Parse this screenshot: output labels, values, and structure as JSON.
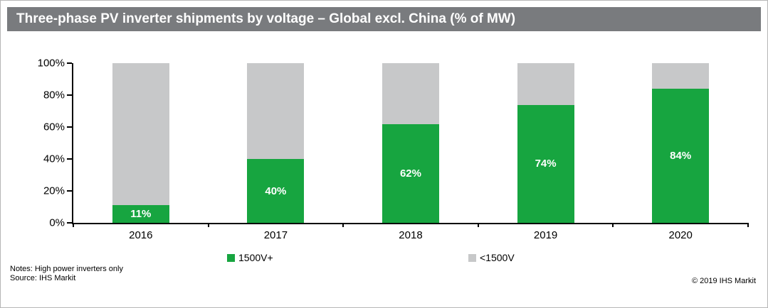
{
  "header": {
    "title": "Three-phase PV inverter shipments by voltage – Global excl. China (% of MW)"
  },
  "chart_data": {
    "type": "bar",
    "stacked": true,
    "title": "Three-phase PV inverter shipments by voltage – Global excl. China (% of MW)",
    "categories": [
      "2016",
      "2017",
      "2018",
      "2019",
      "2020"
    ],
    "series": [
      {
        "name": "1500V+",
        "color": "#17a540",
        "values": [
          11,
          40,
          62,
          74,
          84
        ]
      },
      {
        "name": "<1500V",
        "color": "#c7c8c9",
        "values": [
          89,
          60,
          38,
          26,
          16
        ]
      }
    ],
    "value_labels": [
      "11%",
      "40%",
      "62%",
      "74%",
      "84%"
    ],
    "xlabel": "",
    "ylabel": "",
    "ylim": [
      0,
      100
    ],
    "ytick_labels": [
      "0%",
      "20%",
      "40%",
      "60%",
      "80%",
      "100%"
    ],
    "grid": false,
    "legend_position": "bottom"
  },
  "legend": [
    {
      "label": "1500V+",
      "color": "#17a540"
    },
    {
      "label": "<1500V",
      "color": "#c7c8c9"
    }
  ],
  "footer": {
    "notes": "Notes: High power inverters only",
    "source": "Source: IHS Markit",
    "copyright": "© 2019 IHS Markit"
  }
}
